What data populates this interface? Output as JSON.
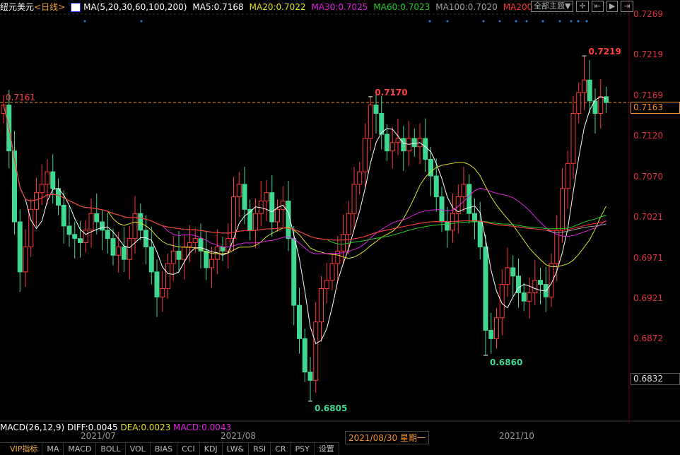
{
  "header": {
    "symbol": "纽元美元",
    "period": "<日线>",
    "ma_label": "MA(5,20,30,60,100,200)",
    "ma": [
      {
        "label": "MA5:0.7168",
        "color": "#ffffff"
      },
      {
        "label": "MA20:0.7022",
        "color": "#e0e020"
      },
      {
        "label": "MA30:0.7025",
        "color": "#e020e0"
      },
      {
        "label": "MA60:0.7023",
        "color": "#20d020"
      },
      {
        "label": "MA100:0.7020",
        "color": "#a0a0a0"
      },
      {
        "label": "MA200",
        "color": "#ff3030"
      }
    ]
  },
  "toolbar": {
    "theme": "全部主题▼",
    "icons": [
      "crosshair-icon",
      "zoom-range-icon",
      "play-icon",
      "exit-icon"
    ]
  },
  "price_axis": [
    "0.7269",
    "0.7219",
    "0.7169",
    "0.7120",
    "0.7070",
    "0.7021",
    "0.6971",
    "0.6921",
    "0.6872"
  ],
  "current_price": "0.7163",
  "cursor_price": "0.6832",
  "ref_line_label": "0.7161",
  "annotations": [
    {
      "text": "0.7219",
      "price": 0.7219,
      "type": "high",
      "index": 106
    },
    {
      "text": "0.7170",
      "price": 0.717,
      "type": "high",
      "index": 67
    },
    {
      "text": "0.6805",
      "price": 0.6805,
      "type": "low",
      "index": 56
    },
    {
      "text": "0.6860",
      "price": 0.686,
      "type": "low",
      "index": 88
    }
  ],
  "macd": {
    "label": "MACD(26,12,9)",
    "diff": "DIFF:0.0045",
    "dea": "DEA:0.0023",
    "macd": "MACD:0.0043"
  },
  "x_axis": [
    {
      "text": "2021/07",
      "index": 15
    },
    {
      "text": "2021/08",
      "index": 42
    },
    {
      "text": "2021/10",
      "index": 92
    }
  ],
  "cursor_date": "2021/08/30 星期一",
  "tabs": [
    "VIP指标",
    "MA",
    "MACD",
    "BOLL",
    "VOL",
    "BIAS",
    "CCI",
    "KDJ",
    "LW&",
    "RSI",
    "CR",
    "PSY",
    "设置"
  ],
  "colors": {
    "up": "#ff3838",
    "down": "#40d890",
    "axis": "#e03040",
    "accent": "#f0902a"
  },
  "chart_data": {
    "type": "candlestick",
    "ylim": [
      0.678,
      0.7285
    ],
    "first_open": 0.715,
    "close": [
      0.716,
      0.7105,
      0.702,
      0.696,
      0.699,
      0.7035,
      0.7055,
      0.7065,
      0.708,
      0.706,
      0.704,
      0.7015,
      0.7005,
      0.7,
      0.6995,
      0.701,
      0.703,
      0.702,
      0.701,
      0.7,
      0.698,
      0.699,
      0.6975,
      0.7,
      0.703,
      0.701,
      0.699,
      0.696,
      0.693,
      0.694,
      0.697,
      0.6985,
      0.6975,
      0.699,
      0.6995,
      0.7,
      0.6985,
      0.6965,
      0.6975,
      0.699,
      0.6985,
      0.7,
      0.705,
      0.7065,
      0.7035,
      0.701,
      0.703,
      0.7045,
      0.7055,
      0.702,
      0.7035,
      0.7045,
      0.7,
      0.692,
      0.688,
      0.684,
      0.683,
      0.69,
      0.694,
      0.695,
      0.697,
      0.6985,
      0.7005,
      0.703,
      0.7065,
      0.708,
      0.712,
      0.716,
      0.715,
      0.7125,
      0.7105,
      0.7115,
      0.712,
      0.7105,
      0.712,
      0.711,
      0.712,
      0.7095,
      0.7075,
      0.705,
      0.702,
      0.701,
      0.703,
      0.705,
      0.7065,
      0.703,
      0.702,
      0.699,
      0.689,
      0.688,
      0.6905,
      0.6945,
      0.6965,
      0.6955,
      0.6935,
      0.6925,
      0.6935,
      0.695,
      0.6945,
      0.693,
      0.697,
      0.701,
      0.706,
      0.709,
      0.715,
      0.7175,
      0.719,
      0.7165,
      0.715,
      0.717,
      0.7163
    ]
  }
}
